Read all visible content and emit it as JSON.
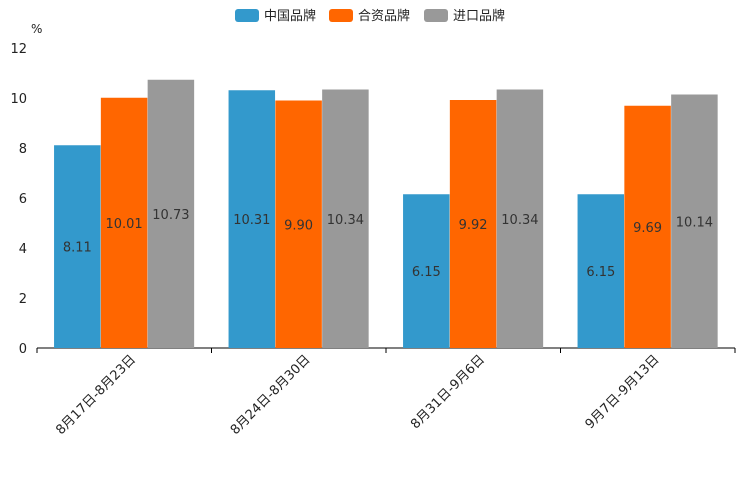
{
  "chart_data": {
    "type": "bar",
    "title": "",
    "xlabel": "",
    "ylabel": "%",
    "ylim": [
      0,
      12
    ],
    "yticks": [
      0,
      2,
      4,
      6,
      8,
      10,
      12
    ],
    "grid": false,
    "legend_position": "top-center",
    "categories": [
      "8月17日-8月23日",
      "8月24日-8月30日",
      "8月31日-9月6日",
      "9月7日-9月13日"
    ],
    "series": [
      {
        "name": "中国品牌",
        "color": "#3399cc",
        "values": [
          8.11,
          10.31,
          6.15,
          6.15
        ],
        "labels": [
          "8.11",
          "10.31",
          "6.15",
          "6.15"
        ]
      },
      {
        "name": "合资品牌",
        "color": "#ff6600",
        "values": [
          10.01,
          9.9,
          9.92,
          9.69
        ],
        "labels": [
          "10.01",
          "9.90",
          "9.92",
          "9.69"
        ]
      },
      {
        "name": "进口品牌",
        "color": "#999999",
        "values": [
          10.73,
          10.34,
          10.34,
          10.14
        ],
        "labels": [
          "10.73",
          "10.34",
          "10.34",
          "10.14"
        ]
      }
    ]
  }
}
